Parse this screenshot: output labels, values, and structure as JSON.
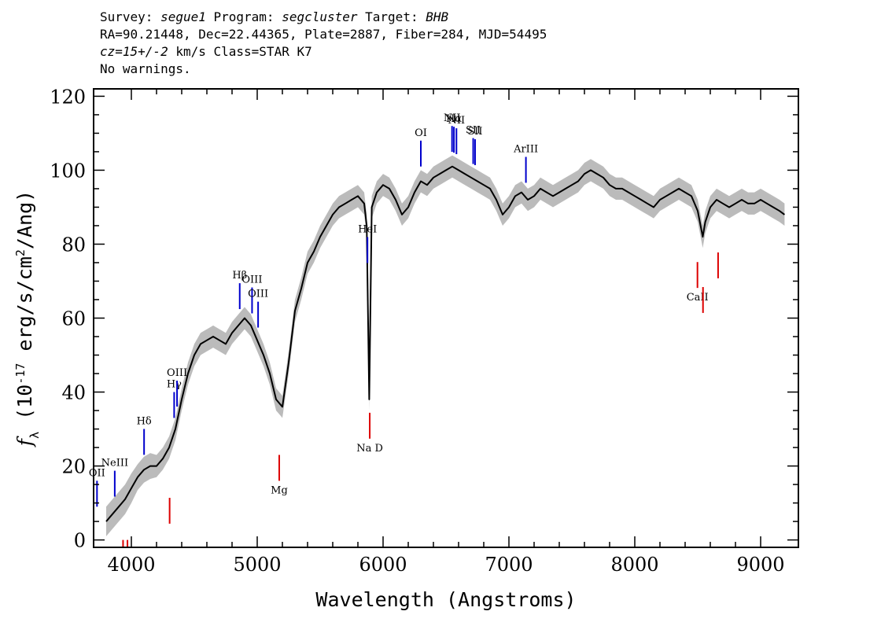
{
  "header": {
    "line1": [
      {
        "text": "Survey: ",
        "italic": false
      },
      {
        "text": "segue1",
        "italic": true
      },
      {
        "text": " Program: ",
        "italic": false
      },
      {
        "text": "segcluster",
        "italic": true
      },
      {
        "text": " Target: ",
        "italic": false
      },
      {
        "text": "BHB",
        "italic": true
      }
    ],
    "line2": "RA=90.21448, Dec=22.44365, Plate=2887, Fiber=284, MJD=54495",
    "line3": [
      {
        "text": "cz=15+/-2",
        "italic": true
      },
      {
        "text": " km/s Class=STAR K7",
        "italic": false
      }
    ],
    "line4": "No warnings."
  },
  "colors": {
    "spectrum": "#000000",
    "error_band": "#bbbbbb",
    "emission_marker": "#0000cc",
    "absorption_marker": "#dd0000",
    "sky_marker": "#000000"
  },
  "chart_data": {
    "type": "line",
    "xlabel": "Wavelength (Angstroms)",
    "ylabel": "f_λ (10^-17 erg/s/cm^2/Ang)",
    "xlim": [
      3700,
      9300
    ],
    "ylim": [
      -2,
      122
    ],
    "x_ticks": [
      4000,
      5000,
      6000,
      7000,
      8000,
      9000
    ],
    "y_ticks": [
      0,
      20,
      40,
      60,
      80,
      100,
      120
    ],
    "grid": false,
    "legend": "none",
    "series": [
      {
        "x": [
          3800,
          3850,
          3900,
          3950,
          4000,
          4050,
          4100,
          4150,
          4200,
          4250,
          4300,
          4350,
          4400,
          4450,
          4500,
          4550,
          4600,
          4650,
          4700,
          4750,
          4800,
          4850,
          4900,
          4950,
          5000,
          5050,
          5100,
          5150,
          5200,
          5250,
          5300,
          5350,
          5400,
          5450,
          5500,
          5550,
          5600,
          5650,
          5700,
          5750,
          5800,
          5850,
          5870,
          5890,
          5910,
          5950,
          6000,
          6050,
          6100,
          6150,
          6200,
          6250,
          6300,
          6350,
          6400,
          6450,
          6500,
          6550,
          6600,
          6650,
          6700,
          6750,
          6800,
          6850,
          6900,
          6950,
          7000,
          7050,
          7100,
          7150,
          7200,
          7250,
          7300,
          7350,
          7400,
          7450,
          7500,
          7550,
          7600,
          7650,
          7700,
          7750,
          7800,
          7850,
          7900,
          7950,
          8000,
          8050,
          8100,
          8150,
          8200,
          8250,
          8300,
          8350,
          8400,
          8450,
          8500,
          8540,
          8560,
          8600,
          8650,
          8700,
          8750,
          8800,
          8850,
          8900,
          8950,
          9000,
          9050,
          9100,
          9150,
          9190
        ],
        "y": [
          5,
          7,
          9,
          11,
          14,
          17,
          19,
          20,
          20,
          22,
          25,
          30,
          38,
          45,
          50,
          53,
          54,
          55,
          54,
          53,
          56,
          58,
          60,
          58,
          54,
          50,
          45,
          38,
          36,
          48,
          62,
          68,
          75,
          78,
          82,
          85,
          88,
          90,
          91,
          92,
          93,
          91,
          85,
          38,
          90,
          94,
          96,
          95,
          92,
          88,
          90,
          94,
          97,
          96,
          98,
          99,
          100,
          101,
          100,
          99,
          98,
          97,
          96,
          95,
          92,
          88,
          90,
          93,
          94,
          92,
          93,
          95,
          94,
          93,
          94,
          95,
          96,
          97,
          99,
          100,
          99,
          98,
          96,
          95,
          95,
          94,
          93,
          92,
          91,
          90,
          92,
          93,
          94,
          95,
          94,
          93,
          89,
          82,
          86,
          90,
          92,
          91,
          90,
          91,
          92,
          91,
          91,
          92,
          91,
          90,
          89,
          88
        ],
        "error": [
          4,
          4,
          4,
          4,
          4,
          3.5,
          3.5,
          3.5,
          3,
          3,
          3,
          3,
          3,
          3,
          3,
          3,
          3,
          3,
          3,
          3,
          3,
          3,
          3,
          3,
          3,
          3,
          3,
          3,
          3,
          3,
          3,
          3,
          3,
          3,
          3,
          3,
          3,
          3,
          3,
          3,
          3,
          3,
          3,
          3,
          3,
          3,
          3,
          3,
          3,
          3,
          3,
          3,
          3,
          3,
          3,
          3,
          3,
          3,
          3,
          3,
          3,
          3,
          3,
          3,
          3,
          3,
          3,
          3,
          3,
          3,
          3,
          3,
          3,
          3,
          3,
          3,
          3,
          3,
          3,
          3,
          3,
          3,
          3,
          3,
          3,
          3,
          3,
          3,
          3,
          3,
          3,
          3,
          3,
          3,
          3,
          3,
          3,
          3,
          3,
          3,
          3,
          3,
          3,
          3,
          3,
          3,
          3,
          3,
          3,
          3,
          3,
          3
        ]
      }
    ],
    "emission_lines": [
      {
        "label": "OII",
        "wavelength": 3727
      },
      {
        "label": "NeIII",
        "wavelength": 3868
      },
      {
        "label": "Hδ",
        "wavelength": 4101
      },
      {
        "label": "Hγ",
        "wavelength": 4340
      },
      {
        "label": "OIII",
        "wavelength": 4363
      },
      {
        "label": "Hβ",
        "wavelength": 4861
      },
      {
        "label": "OIII",
        "wavelength": 4959
      },
      {
        "label": "OIII",
        "wavelength": 5007
      },
      {
        "label": "HeI",
        "wavelength": 5876
      },
      {
        "label": "OI",
        "wavelength": 6300
      },
      {
        "label": "NII",
        "wavelength": 6548
      },
      {
        "label": "Hα",
        "wavelength": 6563
      },
      {
        "label": "NII",
        "wavelength": 6583
      },
      {
        "label": "SII",
        "wavelength": 6716
      },
      {
        "label": "SII",
        "wavelength": 6731
      },
      {
        "label": "ArIII",
        "wavelength": 7135
      }
    ],
    "absorption_lines": [
      {
        "label": "",
        "wavelength": 3934
      },
      {
        "label": "",
        "wavelength": 3969
      },
      {
        "label": "",
        "wavelength": 4304
      },
      {
        "label": "Mg",
        "wavelength": 5175
      },
      {
        "label": "Na D",
        "wavelength": 5894
      },
      {
        "label": "CaII",
        "wavelength": 8498
      },
      {
        "label": "",
        "wavelength": 8542
      },
      {
        "label": "",
        "wavelength": 8662
      }
    ]
  }
}
